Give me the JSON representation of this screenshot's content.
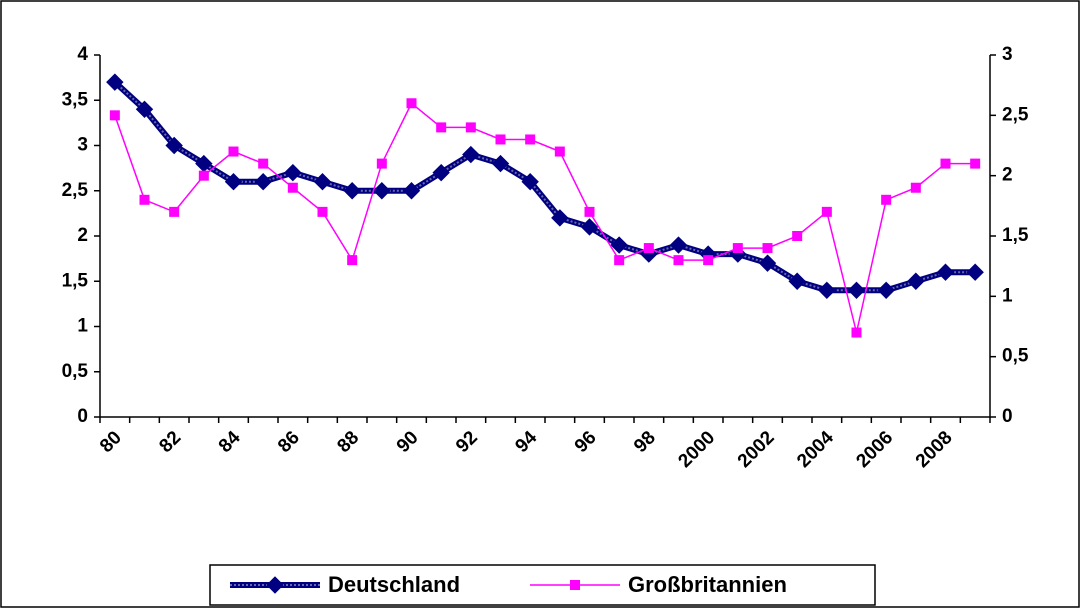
{
  "chart_data": {
    "type": "line",
    "categories": [
      "80",
      null,
      "82",
      null,
      "84",
      null,
      "86",
      null,
      "88",
      null,
      "90",
      null,
      "92",
      null,
      "94",
      null,
      "96",
      null,
      "98",
      null,
      "2000",
      null,
      "2002",
      null,
      "2004",
      null,
      "2006",
      null,
      "2008",
      null
    ],
    "series": [
      {
        "name": "Deutschland",
        "color": "#000080",
        "marker": "diamond",
        "axis": "y",
        "values": [
          3.7,
          3.4,
          3.0,
          2.8,
          2.6,
          2.6,
          2.7,
          2.6,
          2.5,
          2.5,
          2.5,
          2.7,
          2.9,
          2.8,
          2.6,
          2.2,
          2.1,
          1.9,
          1.8,
          1.9,
          1.8,
          1.8,
          1.7,
          1.5,
          1.4,
          1.4,
          1.4,
          1.5,
          1.6,
          1.6
        ]
      },
      {
        "name": "Großbritannien",
        "color": "#ff00ff",
        "marker": "square",
        "axis": "y2",
        "values": [
          2.5,
          1.8,
          1.7,
          2.0,
          2.2,
          2.1,
          1.9,
          1.7,
          1.3,
          2.1,
          2.6,
          2.4,
          2.4,
          2.3,
          2.3,
          2.2,
          1.7,
          1.3,
          1.4,
          1.3,
          1.3,
          1.4,
          1.4,
          1.5,
          1.7,
          0.7,
          1.8,
          1.9,
          2.1,
          2.1
        ]
      }
    ],
    "ylim": [
      0,
      4
    ],
    "yticks": [
      0,
      {
        "value": 0.5,
        "label": "0,5"
      },
      1,
      {
        "value": 1.5,
        "label": "1,5"
      },
      2,
      {
        "value": 2.5,
        "label": "2,5"
      },
      3,
      {
        "value": 3.5,
        "label": "3,5"
      },
      4
    ],
    "y2lim": [
      0,
      3
    ],
    "y2ticks": [
      0,
      {
        "value": 0.5,
        "label": "0,5"
      },
      1,
      {
        "value": 1.5,
        "label": "1,5"
      },
      2,
      {
        "value": 2.5,
        "label": "2,5"
      },
      3
    ],
    "legend": "bottom"
  }
}
